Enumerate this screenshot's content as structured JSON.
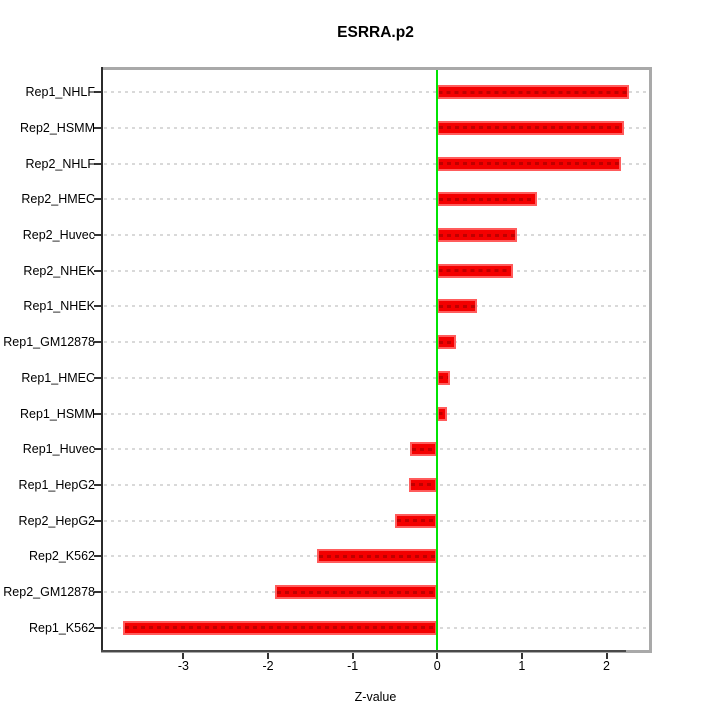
{
  "chart_data": {
    "type": "bar",
    "orientation": "horizontal",
    "title": "ESRRA.p2",
    "xlabel": "Z-value",
    "ylabel": "",
    "categories": [
      "Rep1_NHLF",
      "Rep2_HSMM",
      "Rep2_NHLF",
      "Rep2_HMEC",
      "Rep2_Huvec",
      "Rep2_NHEK",
      "Rep1_NHEK",
      "Rep1_GM12878",
      "Rep1_HMEC",
      "Rep1_HSMM",
      "Rep1_Huvec",
      "Rep1_HepG2",
      "Rep2_HepG2",
      "Rep2_K562",
      "Rep2_GM12878",
      "Rep1_K562"
    ],
    "values": [
      2.26,
      2.21,
      2.17,
      1.18,
      0.94,
      0.89,
      0.47,
      0.22,
      0.15,
      0.11,
      -0.32,
      -0.34,
      -0.5,
      -1.42,
      -1.92,
      -3.71
    ],
    "xticks": [
      -3,
      -2,
      -1,
      0,
      1,
      2
    ],
    "xtick_labels": [
      "-3",
      "-2",
      "-1",
      "0",
      "1",
      "2"
    ],
    "xlim": [
      -3.95,
      2.49
    ],
    "grid": "dotted horizontal line per category",
    "legend": "none",
    "zero_reference_line": 0,
    "colors": {
      "bar_fill": "#f40000",
      "bar_edge": "#ff5c5c",
      "bar_dash": "#c00000",
      "zero_line": "#00e404",
      "gridline": "#d9d9d9",
      "frame": "#a9a9a9",
      "axis": "#2b2b2b",
      "tick": "#333333",
      "background": "#ffffff",
      "text": "#000000"
    }
  }
}
